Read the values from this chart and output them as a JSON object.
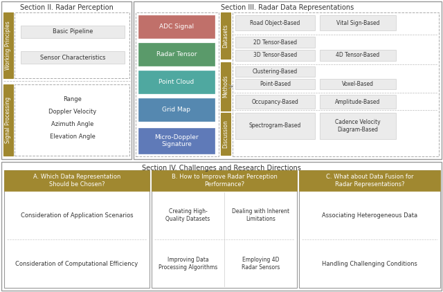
{
  "gold_color": "#a08830",
  "light_gray": "#ebebeb",
  "white": "#ffffff",
  "dark_text": "#333333",
  "box_edge": "#cccccc",
  "dash_edge": "#aaaaaa",
  "outer_edge": "#999999",
  "section2_title": "Section II. Radar Perception",
  "section3_title": "Section III. Radar Data Representations",
  "section4_title": "Section IV. Challenges and Research Directions",
  "wp_items": [
    "Basic Pipeline",
    "Sensor Characteristics"
  ],
  "sp_items": [
    "Range",
    "Doppler Velocity",
    "Azimuth Angle",
    "Elevation Angle"
  ],
  "radar_boxes": [
    {
      "label": "ADC Signal",
      "color": "#c0706a"
    },
    {
      "label": "Radar Tensor",
      "color": "#5a9a6a"
    },
    {
      "label": "Point Cloud",
      "color": "#4fa8a0"
    },
    {
      "label": "Grid Map",
      "color": "#5588b0"
    },
    {
      "label": "Micro-Doppler\nSignature",
      "color": "#5f7ab8"
    }
  ],
  "side_bars": [
    {
      "label": "Datasets",
      "t": 0.08,
      "b": 0.45
    },
    {
      "label": "Methods",
      "t": 0.46,
      "b": 0.73
    },
    {
      "label": "Discussion",
      "t": 0.74,
      "b": 0.97
    }
  ],
  "right_items": [
    {
      "label": "Road Object-Based",
      "col": 0,
      "row": 0
    },
    {
      "label": "Vital Sign-Based",
      "col": 1,
      "row": 0
    },
    {
      "label": "2D Tensor-Based",
      "col": 0,
      "row": 1
    },
    {
      "label": "4D Tensor-Based",
      "col": 1,
      "row": 2
    },
    {
      "label": "3D Tensor-Based",
      "col": 0,
      "row": 2
    },
    {
      "label": "Clustering-Based",
      "col": 0,
      "row": 3
    },
    {
      "label": "Voxel-Based",
      "col": 1,
      "row": 4
    },
    {
      "label": "Point-Based",
      "col": 0,
      "row": 4
    },
    {
      "label": "Occupancy-Based",
      "col": 0,
      "row": 5
    },
    {
      "label": "Amplitude-Based",
      "col": 1,
      "row": 5
    },
    {
      "label": "Spectrogram-Based",
      "col": 0,
      "row": 6
    },
    {
      "label": "Cadence Velocity\nDiagram-Based",
      "col": 1,
      "row": 6
    }
  ],
  "challenge_titles": [
    "A. Which Data Representation\nShould be Chosen?",
    "B. How to Improve Radar Perception\nPerformance?",
    "C. What about Data Fusion for\nRadar Representations?"
  ],
  "challenge_items_A": [
    "Consideration of Application Scenarios",
    "Consideration of Computational Efficiency"
  ],
  "challenge_items_B": [
    "Creating High-\nQuality Datasets",
    "Dealing with Inherent\nLimitations",
    "Improving Data\nProcessing Algorithms",
    "Employing 4D\nRadar Sensors"
  ],
  "challenge_items_C": [
    "Associating Heterogeneous Data",
    "Handling Challenging Conditions"
  ]
}
